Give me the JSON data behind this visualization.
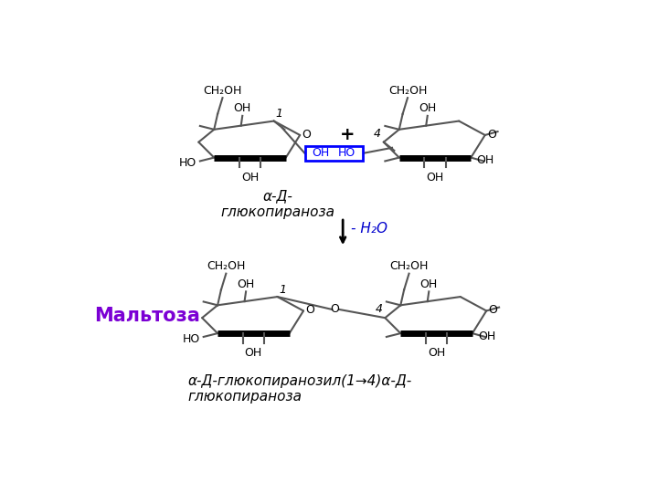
{
  "bg_color": "#ffffff",
  "text_color": "#000000",
  "ring_color": "#555555",
  "bold_line_color": "#000000",
  "maltoza_color": "#7b00d4",
  "h2o_color": "#0000cd",
  "maltoza_label": "Мальтоза",
  "alpha_d_label": "α-Д-\nглюкопираноза",
  "product_label": "α-Д-глюкопиранозил(1→4)α-Д-\nглюкопираноза",
  "h2o_text": "- H₂O",
  "plus_text": "+"
}
